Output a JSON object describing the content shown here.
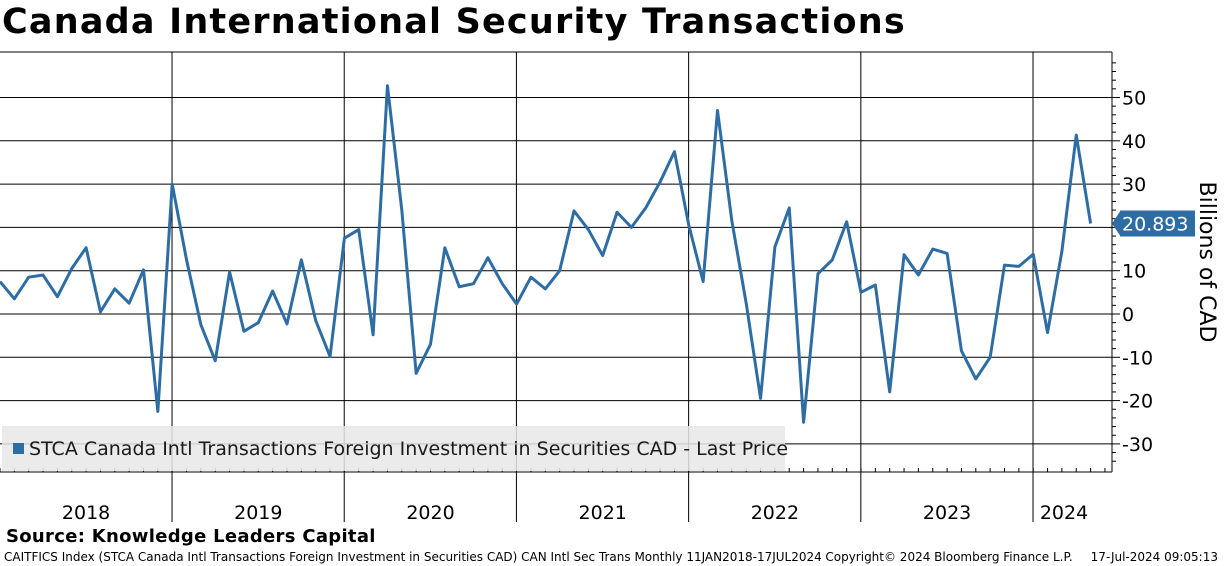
{
  "chart_data": {
    "type": "line",
    "title": "Canada International Security Transactions",
    "ylabel": "Billions of CAD",
    "xlabel": "",
    "ylim": [
      -35,
      60
    ],
    "yticks": [
      50,
      40,
      30,
      20,
      10,
      0,
      -10,
      -20,
      -30
    ],
    "year_labels": [
      "2018",
      "2019",
      "2020",
      "2021",
      "2022",
      "2023",
      "2024"
    ],
    "x_start": "2018-01",
    "x_end": "2024-07",
    "grid": true,
    "legend_position": "bottom-left",
    "series": [
      {
        "name": "STCA Canada Intl Transactions Foreign Investment in Securities CAD - Last Price",
        "color": "#2e6da4",
        "last_value_label": "20.893",
        "x": [
          "2018-01",
          "2018-02",
          "2018-03",
          "2018-04",
          "2018-05",
          "2018-06",
          "2018-07",
          "2018-08",
          "2018-09",
          "2018-10",
          "2018-11",
          "2018-12",
          "2019-01",
          "2019-02",
          "2019-03",
          "2019-04",
          "2019-05",
          "2019-06",
          "2019-07",
          "2019-08",
          "2019-09",
          "2019-10",
          "2019-11",
          "2019-12",
          "2020-01",
          "2020-02",
          "2020-03",
          "2020-04",
          "2020-05",
          "2020-06",
          "2020-07",
          "2020-08",
          "2020-09",
          "2020-10",
          "2020-11",
          "2020-12",
          "2021-01",
          "2021-02",
          "2021-03",
          "2021-04",
          "2021-05",
          "2021-06",
          "2021-07",
          "2021-08",
          "2021-09",
          "2021-10",
          "2021-11",
          "2021-12",
          "2022-01",
          "2022-02",
          "2022-03",
          "2022-04",
          "2022-05",
          "2022-06",
          "2022-07",
          "2022-08",
          "2022-09",
          "2022-10",
          "2022-11",
          "2022-12",
          "2023-01",
          "2023-02",
          "2023-03",
          "2023-04",
          "2023-05",
          "2023-06",
          "2023-07",
          "2023-08",
          "2023-09",
          "2023-10",
          "2023-11",
          "2023-12",
          "2024-01",
          "2024-02",
          "2024-03",
          "2024-04",
          "2024-05"
        ],
        "values": [
          7.5,
          3.5,
          8.5,
          9,
          4,
          10.5,
          15.3,
          0.5,
          5.8,
          2.5,
          10.2,
          -22.5,
          30,
          12.5,
          -2.5,
          -10.8,
          9.7,
          -4,
          -2,
          5.3,
          -2.3,
          12.5,
          -1.5,
          -9.8,
          17.5,
          19.5,
          -4.8,
          52.7,
          24,
          -13.7,
          -7,
          15.3,
          6.3,
          7,
          13,
          7,
          2.3,
          8.5,
          5.8,
          10,
          23.8,
          19.5,
          13.5,
          23.5,
          20,
          24.5,
          30.5,
          37.5,
          20.5,
          7.5,
          47,
          21.5,
          2.5,
          -19.5,
          15.5,
          24.5,
          -25,
          9.3,
          12.5,
          21.3,
          5,
          6.7,
          -18,
          13.7,
          9,
          15,
          14,
          -8.5,
          -15,
          -10,
          11.3,
          11,
          13.8,
          -4.3,
          14.5,
          41.3,
          20.9
        ]
      }
    ]
  },
  "footer": {
    "source": "Source: Knowledge Leaders Capital",
    "index_info": "CAITFICS Index (STCA Canada Intl Transactions Foreign Investment in Securities CAD) CAN Intl Sec Trans  Monthly 11JAN2018-17JUL2024",
    "copyright": "Copyright© 2024 Bloomberg Finance L.P.",
    "timestamp": "17-Jul-2024 09:05:13"
  }
}
